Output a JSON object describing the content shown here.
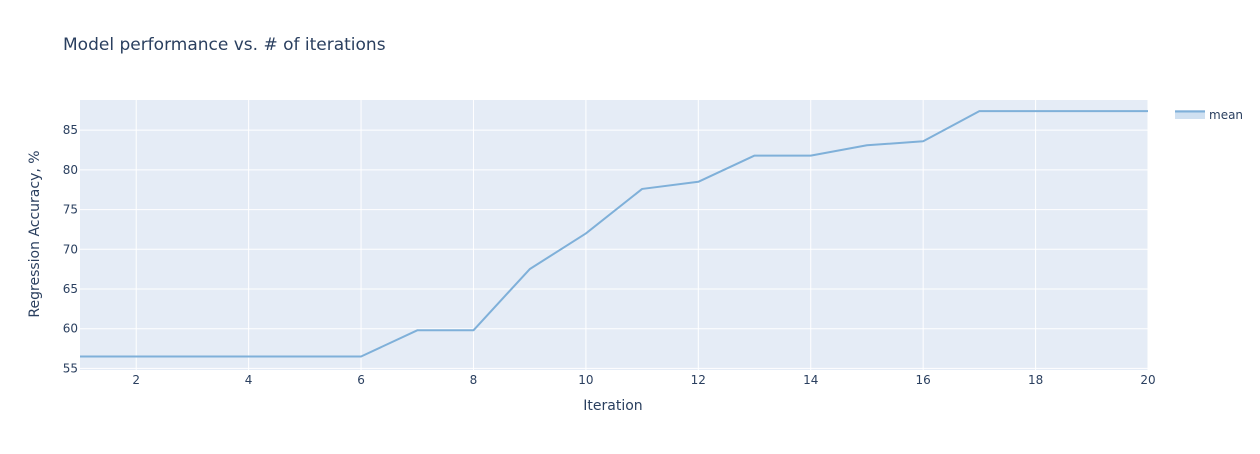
{
  "chart_data": {
    "type": "line",
    "title": "Model performance vs. # of iterations",
    "xlabel": "Iteration",
    "ylabel": "Regression Accuracy, %",
    "xlim": [
      1,
      20
    ],
    "ylim": [
      54.8,
      88.8
    ],
    "xticks": [
      2,
      4,
      6,
      8,
      10,
      12,
      14,
      16,
      18,
      20
    ],
    "yticks": [
      55,
      60,
      65,
      70,
      75,
      80,
      85
    ],
    "grid": true,
    "legend_position": "right",
    "x": [
      1,
      2,
      3,
      4,
      5,
      6,
      7,
      8,
      9,
      10,
      11,
      12,
      13,
      14,
      15,
      16,
      17,
      18,
      19,
      20
    ],
    "series": [
      {
        "name": "mean",
        "color": "#7fb0d9",
        "values": [
          56.5,
          56.5,
          56.5,
          56.5,
          56.5,
          56.5,
          59.8,
          59.8,
          67.5,
          72.0,
          77.6,
          78.5,
          81.8,
          81.8,
          83.1,
          83.6,
          87.4,
          87.4,
          87.4,
          87.4
        ]
      }
    ],
    "colors": {
      "plot_background": "#e5ecf6",
      "grid": "#ffffff",
      "text": "#2a3f5f",
      "legend_band": "#cfe0f1"
    }
  }
}
